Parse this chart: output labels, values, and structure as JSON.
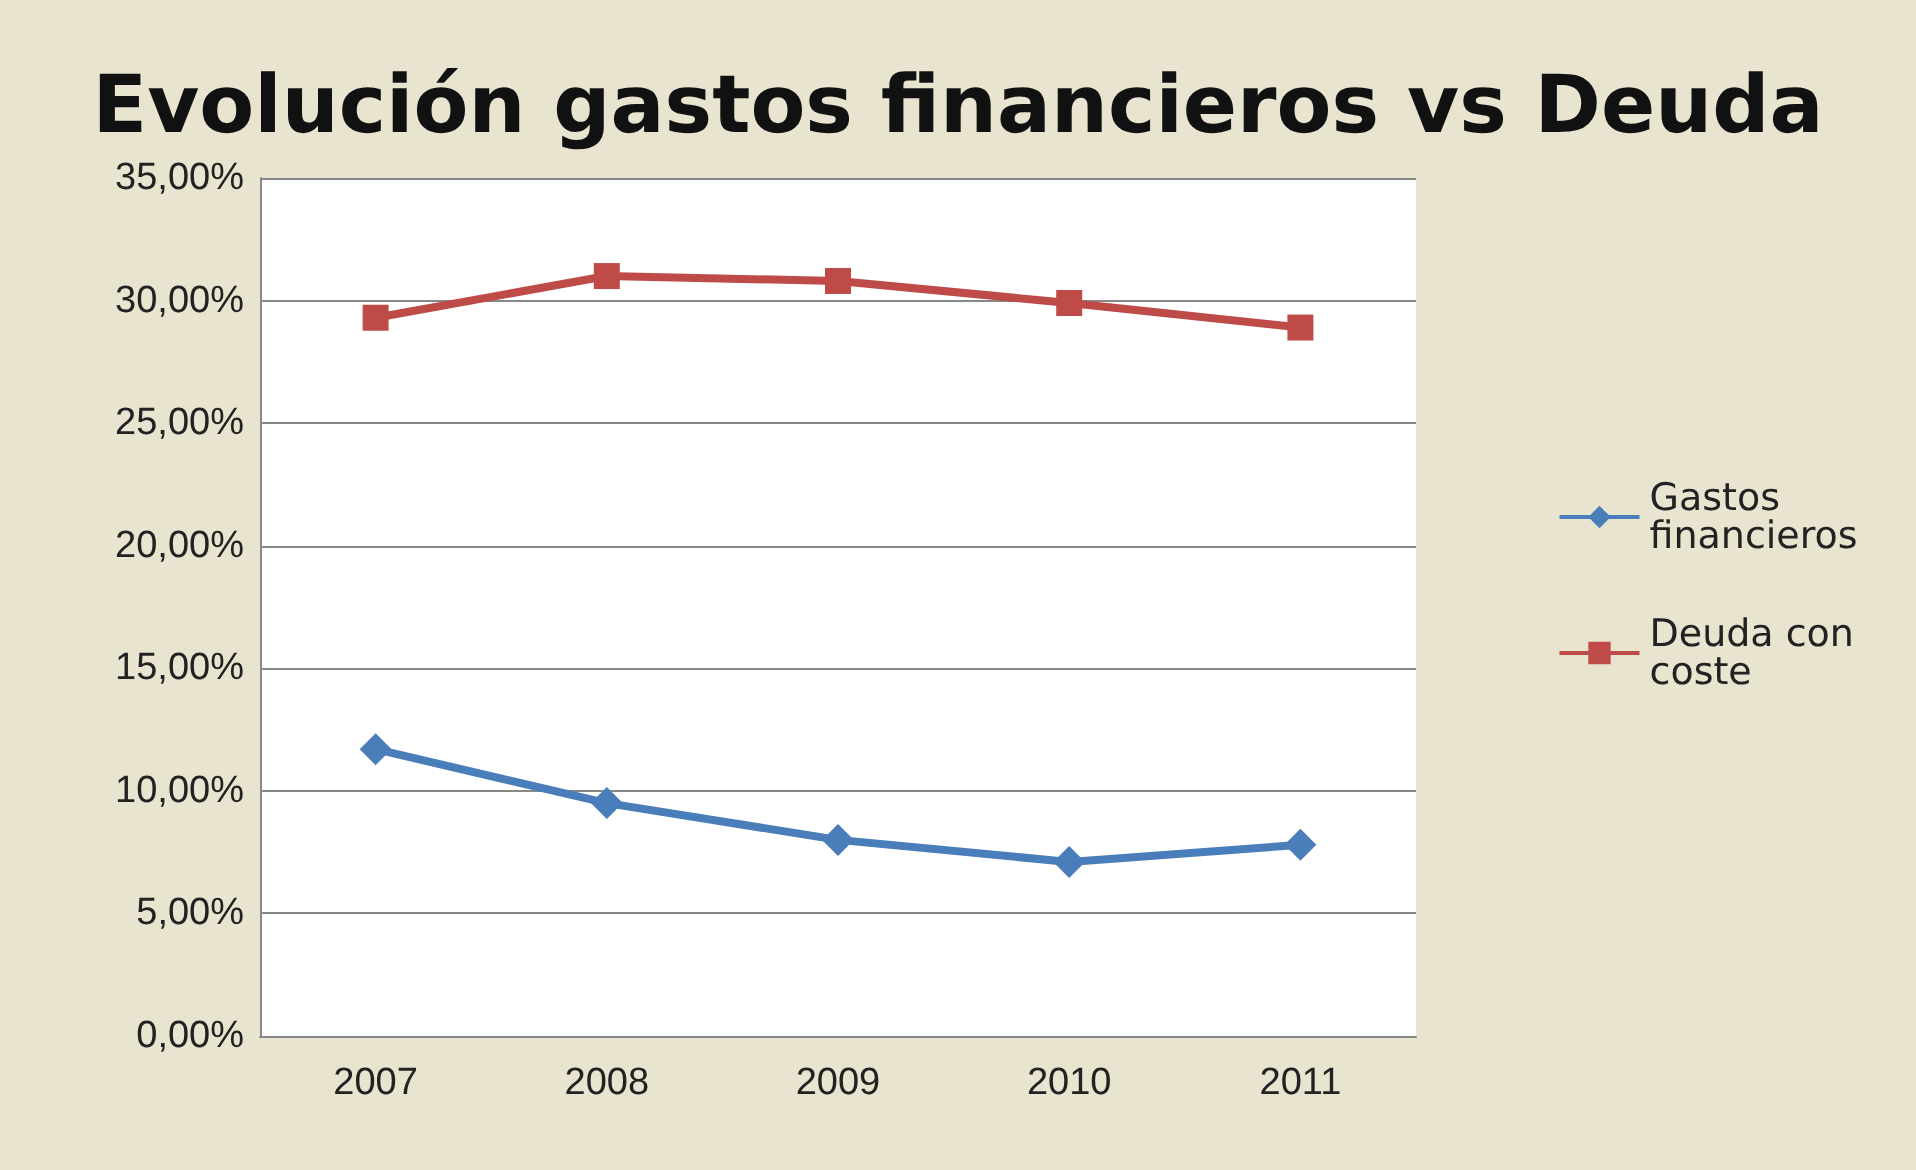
{
  "chart_data": {
    "type": "line",
    "title": "Evolución gastos financieros vs Deuda",
    "categories": [
      "2007",
      "2008",
      "2009",
      "2010",
      "2011"
    ],
    "series": [
      {
        "name": "Gastos financieros",
        "color": "#4a7ebb",
        "marker": "diamond",
        "values": [
          11.7,
          9.5,
          8.0,
          7.1,
          7.8
        ]
      },
      {
        "name": "Deuda con coste",
        "color": "#be4b48",
        "marker": "square",
        "values": [
          29.3,
          31.0,
          30.8,
          29.9,
          28.9
        ]
      }
    ],
    "ylim": [
      0,
      35
    ],
    "yticks": [
      {
        "value": 0,
        "label": "0,00%"
      },
      {
        "value": 5,
        "label": "5,00%"
      },
      {
        "value": 10,
        "label": "10,00%"
      },
      {
        "value": 15,
        "label": "15,00%"
      },
      {
        "value": 20,
        "label": "20,00%"
      },
      {
        "value": 25,
        "label": "25,00%"
      },
      {
        "value": 30,
        "label": "30,00%"
      },
      {
        "value": 35,
        "label": "35,00%"
      }
    ],
    "grid": "y",
    "legend": "right",
    "line_style": "solid"
  }
}
